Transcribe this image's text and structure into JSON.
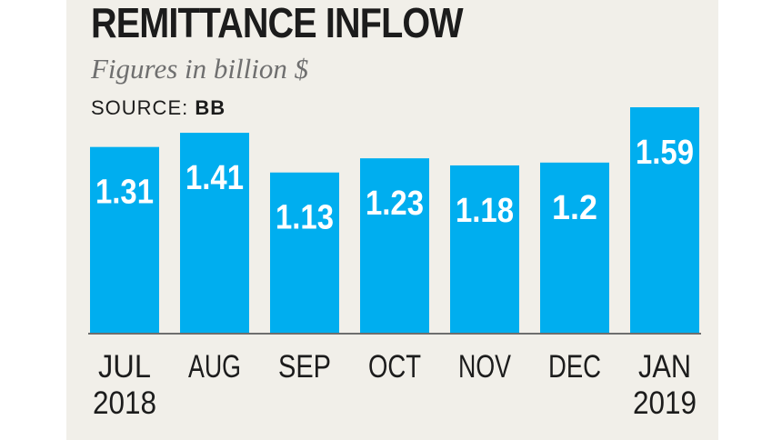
{
  "chart_data": {
    "type": "bar",
    "title": "REMITTANCE INFLOW",
    "subtitle": "Figures in billion $",
    "source_label": "SOURCE:",
    "source_value": "BB",
    "categories": [
      [
        "JUL",
        "2018"
      ],
      [
        "AUG"
      ],
      [
        "SEP"
      ],
      [
        "OCT"
      ],
      [
        "NOV"
      ],
      [
        "DEC"
      ],
      [
        "JAN",
        "2019"
      ]
    ],
    "values": [
      1.31,
      1.41,
      1.13,
      1.23,
      1.18,
      1.2,
      1.59
    ],
    "value_labels": [
      "1.31",
      "1.41",
      "1.13",
      "1.23",
      "1.18",
      "1.2",
      "1.59"
    ],
    "ylim": [
      0,
      1.59
    ],
    "grid": false,
    "colors": {
      "bar": "#00aeef",
      "baseline": "#6e6e6e",
      "background": "#f1efe9"
    }
  }
}
